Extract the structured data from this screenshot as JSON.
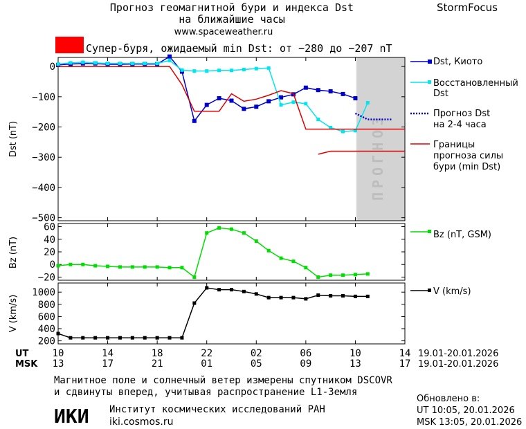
{
  "header": {
    "title_line1": "Прогноз геомагнитной бури и индекса Dst",
    "title_line2": "на ближайшие часы",
    "website": "www.spaceweather.ru",
    "brand": "StormFocus",
    "storm_text": "Супер-буря, ожидаемый min Dst: от −280 до −207 nT"
  },
  "legend": {
    "dst_kyoto": "Dst, Киото",
    "restored_line1": "Восстановленный",
    "restored_line2": "Dst",
    "forecast_line1": "Прогноз Dst",
    "forecast_line2": "на 2-4 часа",
    "bounds_line1": "Границы",
    "bounds_line2": "прогноза силы",
    "bounds_line3": "бури (min Dst)",
    "bz": "Bz (nT, GSM)",
    "v": "V (km/s)"
  },
  "forecast_zone_label": "ПРОГНОЗ",
  "time_axis": {
    "ut_label": "UT",
    "msk_label": "MSK",
    "ut_ticks": [
      "10",
      "14",
      "18",
      "22",
      "02",
      "06",
      "10",
      "14"
    ],
    "msk_ticks": [
      "13",
      "17",
      "21",
      "01",
      "05",
      "09",
      "13",
      "17"
    ],
    "ut_range": "19.01-20.01.2026",
    "msk_range": "19.01-20.01.2026"
  },
  "footer": {
    "note_line1": "Магнитное поле и солнечный ветер измерены спутником DSCOVR",
    "note_line2": "и сдвинуты вперед, учитывая распространение L1-Земля",
    "institute": "Институт космических исследований РАН",
    "institute_url": "iki.cosmos.ru",
    "logo_text": "ИКИ",
    "updated_label": "Обновлено в:",
    "updated_ut": "UT  10:05, 20.01.2026",
    "updated_msk": "MSK 13:05, 20.01.2026"
  },
  "colors": {
    "kyoto": "#0000cc",
    "restored": "#00e5ee",
    "bounds": "#dd0000",
    "bz": "#00dd00",
    "v": "#000000",
    "forecast_zone": "#d3d3d3",
    "storm_box": "#ff0000"
  },
  "chart_data": [
    {
      "type": "line",
      "ylabel": "Dst (nT)",
      "ylim": [
        -510,
        30
      ],
      "yticks": [
        0,
        -100,
        -200,
        -300,
        -400,
        -500
      ],
      "x_unit": "hours from 10 UT 19.01.2026",
      "xlim": [
        0,
        28
      ],
      "forecast_zone": [
        24,
        28
      ],
      "series": [
        {
          "name": "Dst, Киото",
          "key": "kyoto",
          "x": [
            0,
            1,
            2,
            3,
            4,
            5,
            6,
            7,
            8,
            9,
            10,
            11,
            12,
            13,
            14,
            15,
            16,
            17,
            18,
            19,
            20,
            21,
            22,
            23,
            24
          ],
          "y": [
            5,
            8,
            10,
            10,
            7,
            7,
            8,
            8,
            8,
            33,
            -17,
            -180,
            -127,
            -105,
            -113,
            -140,
            -133,
            -115,
            -102,
            -92,
            -70,
            -78,
            -82,
            -91,
            -105
          ]
        },
        {
          "name": "Восстановленный Dst",
          "key": "restored",
          "x": [
            0,
            1,
            2,
            3,
            4,
            5,
            6,
            7,
            8,
            9,
            10,
            11,
            12,
            13,
            14,
            15,
            16,
            17,
            18,
            19,
            20,
            21,
            22,
            23,
            24,
            25
          ],
          "y": [
            8,
            12,
            14,
            12,
            10,
            10,
            10,
            10,
            10,
            20,
            -12,
            -15,
            -15,
            -13,
            -13,
            -10,
            -7,
            -5,
            -127,
            -118,
            -123,
            -175,
            -202,
            -215,
            -212,
            -120
          ]
        },
        {
          "name": "Прогноз Dst на 2-4 часа",
          "key": "forecast",
          "x": [
            24,
            25,
            26,
            27
          ],
          "y": [
            -155,
            -175,
            -175,
            -175
          ]
        },
        {
          "name": "Границы прогноза силы бури (min Dst)",
          "key": "upper_bound",
          "x": [
            0,
            9,
            10,
            11,
            12,
            13,
            14,
            15,
            16,
            17,
            18,
            19,
            20,
            21,
            22,
            23,
            24,
            25,
            26,
            27,
            28
          ],
          "y": [
            0,
            0,
            -60,
            -148,
            -148,
            -148,
            -90,
            -115,
            -108,
            -95,
            -80,
            -90,
            -207,
            -207,
            -207,
            -207,
            -207,
            -207,
            -207,
            -207,
            -207
          ]
        },
        {
          "name": "Границы прогноза силы бури (min Dst) — нижняя",
          "key": "lower_bound",
          "x": [
            21,
            22,
            23,
            24,
            25,
            26,
            27,
            28
          ],
          "y": [
            -290,
            -280,
            -280,
            -280,
            -280,
            -280,
            -280,
            -280
          ]
        }
      ]
    },
    {
      "type": "line",
      "ylabel": "Bz (nT)",
      "ylim": [
        -25,
        65
      ],
      "yticks": [
        60,
        40,
        20,
        0,
        -20
      ],
      "xlim": [
        0,
        28
      ],
      "series": [
        {
          "name": "Bz (nT, GSM)",
          "key": "bz",
          "x": [
            0,
            1,
            2,
            3,
            4,
            5,
            6,
            7,
            8,
            9,
            10,
            11,
            12,
            13,
            14,
            15,
            16,
            17,
            18,
            19,
            20,
            21,
            22,
            23,
            24,
            25
          ],
          "y": [
            -2,
            0,
            0,
            -2,
            -3,
            -4,
            -4,
            -4,
            -4,
            -5,
            -5,
            -20,
            50,
            58,
            56,
            50,
            37,
            22,
            10,
            5,
            -5,
            -20,
            -17,
            -17,
            -16,
            -15
          ]
        }
      ]
    },
    {
      "type": "line",
      "ylabel": "V (km/s)",
      "ylim": [
        150,
        1150
      ],
      "yticks": [
        1000,
        800,
        600,
        400,
        200
      ],
      "xlim": [
        0,
        28
      ],
      "series": [
        {
          "name": "V (km/s)",
          "key": "v",
          "x": [
            0,
            1,
            2,
            3,
            4,
            5,
            6,
            7,
            8,
            9,
            10,
            11,
            12,
            13,
            14,
            15,
            16,
            17,
            18,
            19,
            20,
            21,
            22,
            23,
            24,
            25
          ],
          "y": [
            320,
            250,
            250,
            250,
            250,
            250,
            250,
            250,
            250,
            250,
            250,
            820,
            1070,
            1040,
            1040,
            1010,
            970,
            910,
            910,
            910,
            890,
            950,
            940,
            940,
            930,
            930
          ]
        }
      ]
    }
  ]
}
